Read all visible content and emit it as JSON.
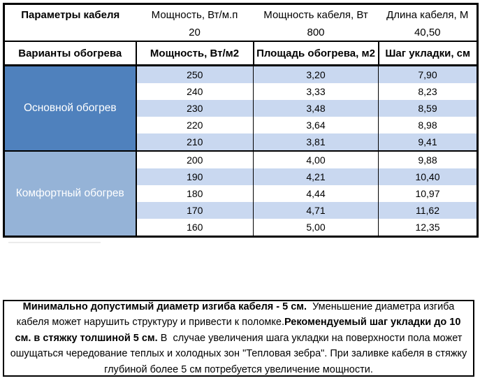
{
  "params": {
    "title": "Параметры кабеля",
    "headers": [
      "Мощность, Вт/м.п",
      "Мощность кабеля, Вт",
      "Длина кабеля, М"
    ],
    "values": [
      "20",
      "800",
      "40,50"
    ]
  },
  "columns": [
    "Варианты обогрева",
    "Мощность, Вт/м2",
    "Площадь обогрева, м2",
    "Шаг укладки, см"
  ],
  "table": {
    "sections": [
      {
        "label": "Основной обогрев",
        "color": "#4F81BD",
        "rows": [
          [
            "250",
            "3,20",
            "7,90"
          ],
          [
            "240",
            "3,33",
            "8,23"
          ],
          [
            "230",
            "3,48",
            "8,59"
          ],
          [
            "220",
            "3,64",
            "8,98"
          ],
          [
            "210",
            "3,81",
            "9,41"
          ]
        ]
      },
      {
        "label": "Комфортный обогрев",
        "color": "#95B3D7",
        "rows": [
          [
            "200",
            "4,00",
            "9,88"
          ],
          [
            "190",
            "4,21",
            "10,40"
          ],
          [
            "180",
            "4,44",
            "10,97"
          ],
          [
            "170",
            "4,71",
            "11,62"
          ],
          [
            "160",
            "5,00",
            "12,35"
          ]
        ]
      }
    ]
  },
  "note": {
    "segments": [
      {
        "text": "Минимально допустимый диаметр изгиба кабеля - 5 см.",
        "bold": true
      },
      {
        "text": "  Уменьшение диаметра изгиба кабеля может нарушить структуру и привести к поломке.",
        "bold": false
      },
      {
        "text": "Рекомендуемый шаг укладки до 10 см. в стяжку толшиной 5 см.",
        "bold": true
      },
      {
        "text": " В  случае увеличения шага укладки на поверхности пола может ошущаться чередование теплых и холодных зон \"Тепловая зебра\". При заливке кабеля в стяжку глубиной более 5 см потребуется увеличение мощности.",
        "bold": false
      }
    ]
  },
  "colors": {
    "section_primary": "#4F81BD",
    "section_comfort": "#95B3D7",
    "stripe": "#C9D8F0",
    "border": "#000000",
    "section_text": "#FFFFFF"
  }
}
